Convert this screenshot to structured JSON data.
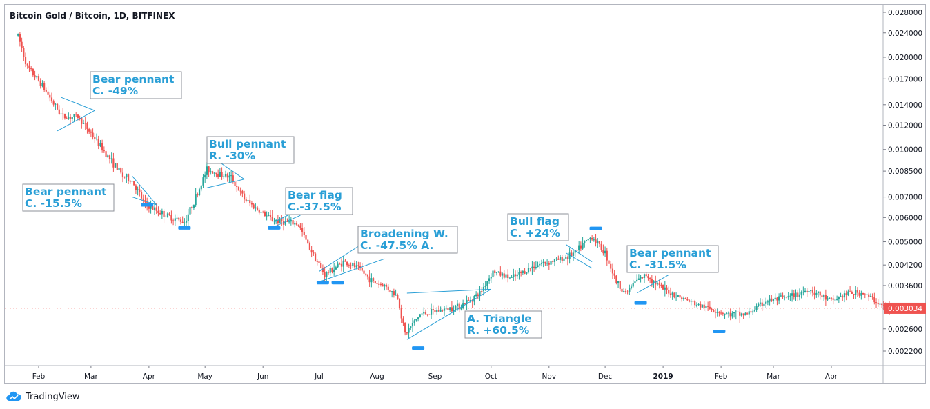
{
  "header": {
    "title": "Bitcoin Gold / Bitcoin, 1D, BITFINEX"
  },
  "footer": {
    "brand": "TradingView"
  },
  "colors": {
    "up": "#26a69a",
    "down": "#ef5350",
    "annotation": "#2a9fd6",
    "price_tag": "#ef5350"
  },
  "chart_data": {
    "type": "candlestick",
    "title": "Bitcoin Gold / Bitcoin, 1D, BITFINEX",
    "y_scale": "log",
    "ylim": [
      0.00195,
      0.0295
    ],
    "y_ticks": [
      0.028,
      0.024,
      0.02,
      0.017,
      0.014,
      0.012,
      0.01,
      0.0085,
      0.007,
      0.006,
      0.005,
      0.0042,
      0.0036,
      0.0026,
      0.0022
    ],
    "y_tick_labels": [
      "0.028000",
      "0.024000",
      "0.020000",
      "0.017000",
      "0.014000",
      "0.012000",
      "0.010000",
      "0.008500",
      "0.007000",
      "0.006000",
      "0.005000",
      "0.004200",
      "0.003600",
      "0.002600",
      "0.002200"
    ],
    "x_ticks": [
      "Feb",
      "Mar",
      "Apr",
      "May",
      "Jun",
      "Jul",
      "Aug",
      "Sep",
      "Oct",
      "Nov",
      "Dec",
      "2019",
      "Feb",
      "Mar",
      "Apr"
    ],
    "last_price": {
      "value": 0.003034,
      "label": "0.003034"
    },
    "price_path": [
      [
        "2018-01-21",
        0.0235
      ],
      [
        "2018-01-26",
        0.0185
      ],
      [
        "2018-02-02",
        0.0165
      ],
      [
        "2018-02-10",
        0.0138
      ],
      [
        "2018-02-14",
        0.0128
      ],
      [
        "2018-02-22",
        0.0128
      ],
      [
        "2018-03-01",
        0.0113
      ],
      [
        "2018-03-10",
        0.0095
      ],
      [
        "2018-03-18",
        0.0082
      ],
      [
        "2018-03-23",
        0.0079
      ],
      [
        "2018-03-30",
        0.0066
      ],
      [
        "2018-04-10",
        0.0061
      ],
      [
        "2018-04-20",
        0.0058
      ],
      [
        "2018-04-27",
        0.0072
      ],
      [
        "2018-05-02",
        0.0086
      ],
      [
        "2018-05-15",
        0.0081
      ],
      [
        "2018-05-22",
        0.0069
      ],
      [
        "2018-05-30",
        0.0063
      ],
      [
        "2018-06-06",
        0.0059
      ],
      [
        "2018-06-20",
        0.0057
      ],
      [
        "2018-06-25",
        0.0049
      ],
      [
        "2018-07-04",
        0.0039
      ],
      [
        "2018-07-14",
        0.0043
      ],
      [
        "2018-07-22",
        0.0041
      ],
      [
        "2018-07-30",
        0.0037
      ],
      [
        "2018-08-05",
        0.0036
      ],
      [
        "2018-08-12",
        0.0033
      ],
      [
        "2018-08-16",
        0.0025
      ],
      [
        "2018-08-24",
        0.0029
      ],
      [
        "2018-09-05",
        0.003
      ],
      [
        "2018-09-15",
        0.0031
      ],
      [
        "2018-09-25",
        0.0034
      ],
      [
        "2018-10-02",
        0.004
      ],
      [
        "2018-10-12",
        0.0038
      ],
      [
        "2018-10-25",
        0.0042
      ],
      [
        "2018-11-08",
        0.0044
      ],
      [
        "2018-11-15",
        0.0046
      ],
      [
        "2018-11-19",
        0.0049
      ],
      [
        "2018-11-24",
        0.0052
      ],
      [
        "2018-12-01",
        0.0046
      ],
      [
        "2018-12-07",
        0.0037
      ],
      [
        "2018-12-12",
        0.0034
      ],
      [
        "2018-12-17",
        0.0037
      ],
      [
        "2018-12-23",
        0.0039
      ],
      [
        "2019-01-01",
        0.0035
      ],
      [
        "2019-01-10",
        0.0033
      ],
      [
        "2019-01-20",
        0.0031
      ],
      [
        "2019-01-28",
        0.003
      ],
      [
        "2019-02-05",
        0.0029
      ],
      [
        "2019-02-15",
        0.0029
      ],
      [
        "2019-02-25",
        0.0032
      ],
      [
        "2019-03-10",
        0.0033
      ],
      [
        "2019-03-20",
        0.0035
      ],
      [
        "2019-04-01",
        0.0032
      ],
      [
        "2019-04-10",
        0.0034
      ],
      [
        "2019-04-18",
        0.0034
      ],
      [
        "2019-04-28",
        0.0031
      ],
      [
        "2019-05-02",
        0.003034
      ]
    ],
    "annotations": [
      {
        "lines": [
          "Bear pennant",
          "C. -49%"
        ]
      },
      {
        "lines": [
          "Bear pennant",
          "C. -15.5%"
        ]
      },
      {
        "lines": [
          "Bull pennant",
          "R. -30%"
        ]
      },
      {
        "lines": [
          "Bear flag",
          "C.-37.5%"
        ]
      },
      {
        "lines": [
          "Broadening W.",
          "C. -47.5%    A."
        ]
      },
      {
        "lines": [
          "A. Triangle",
          "R. +60.5%"
        ]
      },
      {
        "lines": [
          "Bull flag",
          "C. +24%"
        ]
      },
      {
        "lines": [
          "Bear pennant",
          "C. -31.5%"
        ]
      }
    ]
  }
}
